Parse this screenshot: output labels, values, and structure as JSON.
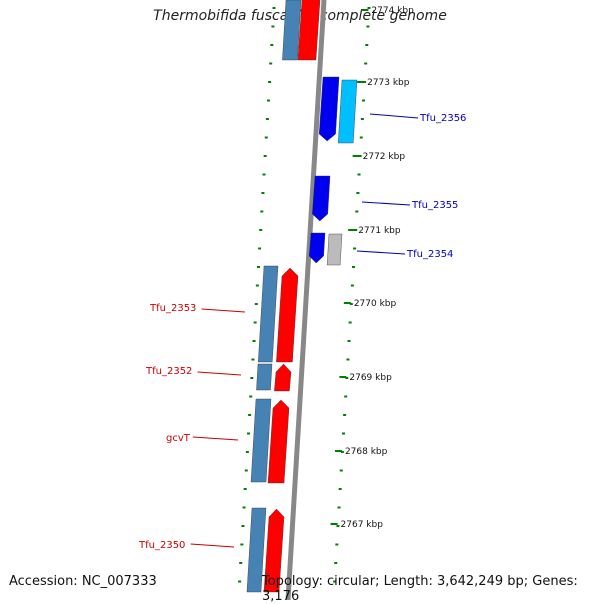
{
  "title": "Thermobifida fusca YX, complete genome",
  "accession": "Accession: NC_007333",
  "topology": "Topology: circular; Length: 3,642,249 bp; Genes: 3,176",
  "colors": {
    "backbone": "#888888",
    "forward_cds": "#ff0000",
    "forward_cds_alt": "#4682b4",
    "reverse_cds": "#0000ee",
    "reverse_cds_alt": "#00bfff",
    "pseudo": "#bbbbbb",
    "ticks": "#008000",
    "label_forward": "#cc0000",
    "label_reverse": "#0000bb"
  },
  "scale_labels": [
    "2774 kbp",
    "2773 kbp",
    "2772 kbp",
    "2771 kbp",
    "2770 kbp",
    "2769 kbp",
    "2768 kbp",
    "2767 kbp"
  ],
  "forward_genes": [
    "Tfu_2353",
    "Tfu_2352",
    "gcvT",
    "Tfu_2350"
  ],
  "reverse_genes": [
    "Tfu_2356",
    "Tfu_2355",
    "Tfu_2354"
  ]
}
